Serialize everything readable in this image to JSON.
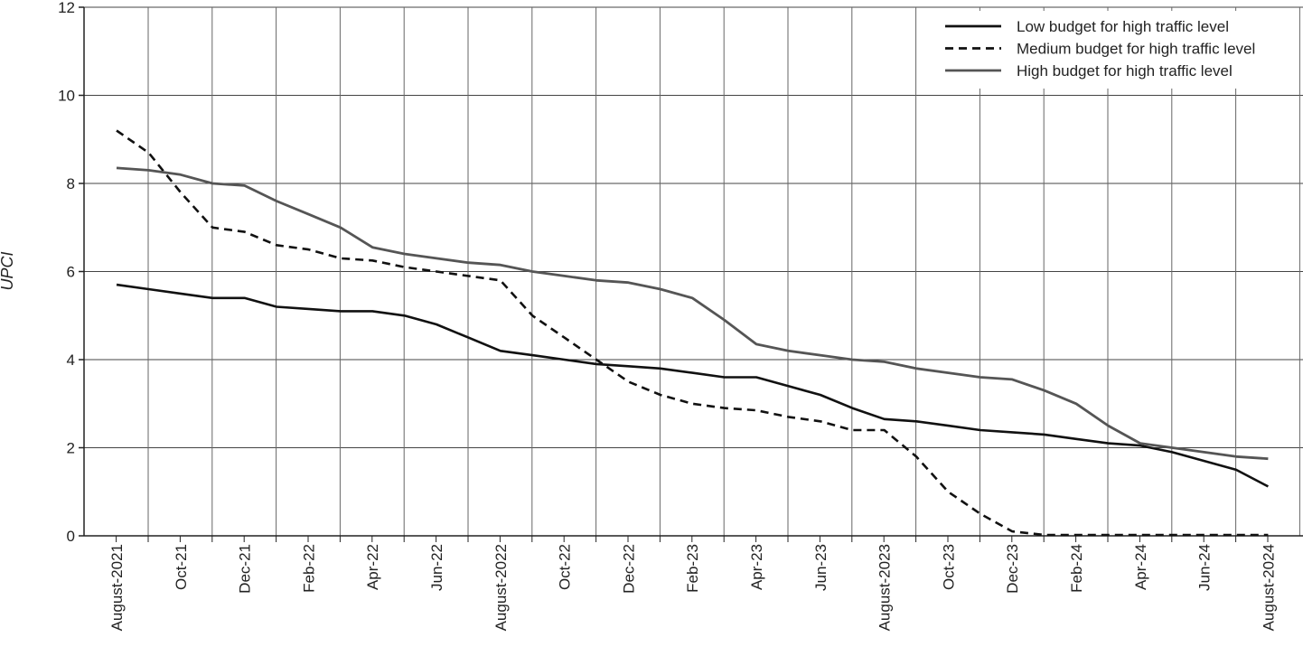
{
  "chart_data": {
    "type": "line",
    "title": "",
    "xlabel": "",
    "ylabel": "UPCI",
    "ylim": [
      0,
      12
    ],
    "yticks": [
      "0",
      "2",
      "4",
      "6",
      "8",
      "10",
      "12"
    ],
    "grid": true,
    "legend_position": "top-right",
    "x": [
      "Aug-21",
      "Sep-21",
      "Oct-21",
      "Nov-21",
      "Dec-21",
      "Jan-22",
      "Feb-22",
      "Mar-22",
      "Apr-22",
      "May-22",
      "Jun-22",
      "Jul-22",
      "Aug-22",
      "Sep-22",
      "Oct-22",
      "Nov-22",
      "Dec-22",
      "Jan-23",
      "Feb-23",
      "Mar-23",
      "Apr-23",
      "May-23",
      "Jun-23",
      "Jul-23",
      "Aug-23",
      "Sep-23",
      "Oct-23",
      "Nov-23",
      "Dec-23",
      "Jan-24",
      "Feb-24",
      "Mar-24",
      "Apr-24",
      "May-24",
      "Jun-24",
      "Jul-24",
      "Aug-24"
    ],
    "x_tick_labels": [
      "August-2021",
      "Oct-21",
      "Dec-21",
      "Feb-22",
      "Apr-22",
      "Jun-22",
      "August-2022",
      "Oct-22",
      "Dec-22",
      "Feb-23",
      "Apr-23",
      "Jun-23",
      "August-2023",
      "Oct-23",
      "Dec-23",
      "Feb-24",
      "Apr-24",
      "Jun-24",
      "August-2024"
    ],
    "series": [
      {
        "name": "Low budget for high traffic level",
        "color": "#111111",
        "dash": "solid",
        "values": [
          5.7,
          5.6,
          5.5,
          5.4,
          5.4,
          5.2,
          5.15,
          5.1,
          5.1,
          5.0,
          4.8,
          4.5,
          4.2,
          4.1,
          4.0,
          3.9,
          3.85,
          3.8,
          3.7,
          3.6,
          3.6,
          3.4,
          3.2,
          2.9,
          2.65,
          2.6,
          2.5,
          2.4,
          2.35,
          2.3,
          2.2,
          2.1,
          2.05,
          1.9,
          1.7,
          1.5,
          1.12
        ]
      },
      {
        "name": "Medium budget for high traffic level",
        "color": "#111111",
        "dash": "dashed",
        "values": [
          9.2,
          8.7,
          7.8,
          7.0,
          6.9,
          6.6,
          6.5,
          6.3,
          6.25,
          6.1,
          6.0,
          5.9,
          5.8,
          5.0,
          4.5,
          4.0,
          3.5,
          3.2,
          3.0,
          2.9,
          2.85,
          2.7,
          2.6,
          2.4,
          2.4,
          1.8,
          1.0,
          0.5,
          0.1,
          0.02,
          0.02,
          0.02,
          0.02,
          0.02,
          0.02,
          0.02,
          0.02
        ]
      },
      {
        "name": "High budget for high traffic level",
        "color": "#555555",
        "dash": "solid",
        "values": [
          8.35,
          8.3,
          8.2,
          8.0,
          7.95,
          7.6,
          7.3,
          7.0,
          6.55,
          6.4,
          6.3,
          6.2,
          6.15,
          6.0,
          5.9,
          5.8,
          5.75,
          5.6,
          5.4,
          4.9,
          4.35,
          4.2,
          4.1,
          4.0,
          3.95,
          3.8,
          3.7,
          3.6,
          3.55,
          3.3,
          3.0,
          2.5,
          2.1,
          2.0,
          1.9,
          1.8,
          1.75
        ]
      }
    ]
  }
}
